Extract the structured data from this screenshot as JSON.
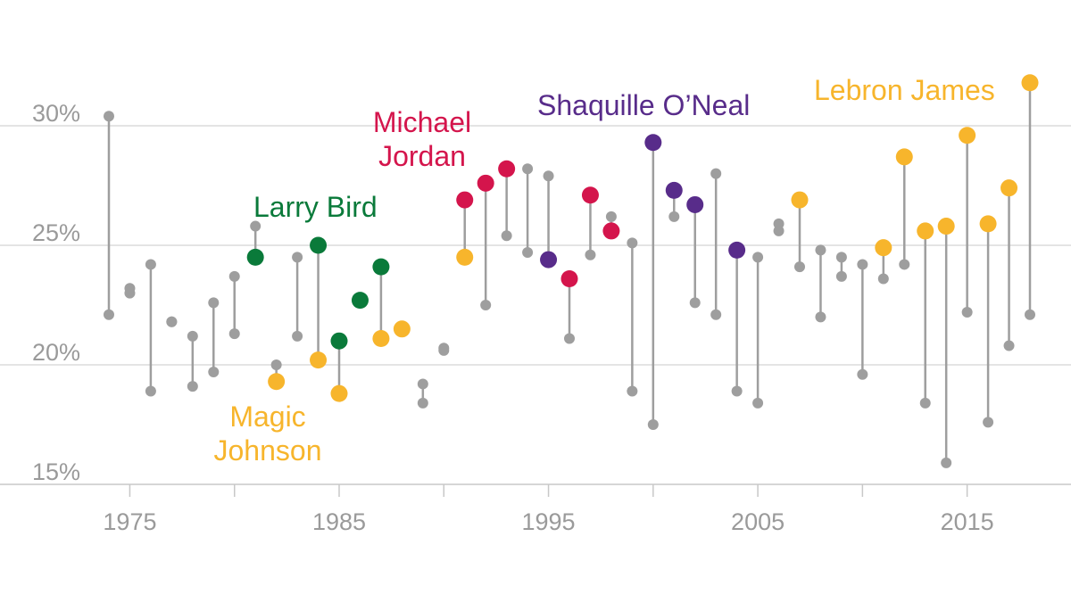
{
  "colors": {
    "neutral": "#9e9e9e",
    "grid": "#dcdcdc",
    "axis": "#c8c8c8",
    "tick_text": "#9a9a9a",
    "bird": "#0a7a3a",
    "magic": "#f7b52c",
    "jordan": "#d4154c",
    "shaq": "#582c8a",
    "lebron": "#f7b52c"
  },
  "chart_data": {
    "type": "dumbbell",
    "title": "",
    "xlabel": "",
    "ylabel": "",
    "xlim": [
      1969.5,
      2020.5
    ],
    "ylim": [
      14.8,
      31.6
    ],
    "yticks": [
      15,
      20,
      25,
      30
    ],
    "ytick_labels": [
      "15%",
      "20%",
      "25%",
      "30%"
    ],
    "xticks": [
      1975,
      1985,
      1995,
      2005,
      2015
    ],
    "xtick_labels": [
      "1975",
      "1985",
      "1995",
      "2005",
      "2015"
    ],
    "minor_xticks": [
      1980,
      1990,
      2000,
      2010
    ],
    "series_labels": [
      {
        "name": "Larry Bird",
        "text": "Larry Bird",
        "colorKey": "bird",
        "anchor": "start",
        "lines": [
          "Larry Bird"
        ]
      },
      {
        "name": "Magic Johnson",
        "text": "Magic Johnson",
        "colorKey": "magic",
        "anchor": "middle",
        "lines": [
          "Magic",
          "Johnson"
        ]
      },
      {
        "name": "Michael Jordan",
        "text": "Michael Jordan",
        "colorKey": "jordan",
        "anchor": "middle",
        "lines": [
          "Michael",
          "Jordan"
        ]
      },
      {
        "name": "Shaquille O’Neal",
        "text": "Shaquille O’Neal",
        "colorKey": "shaq",
        "anchor": "start",
        "lines": [
          "Shaquille O’Neal"
        ]
      },
      {
        "name": "Lebron James",
        "text": "Lebron James",
        "colorKey": "lebron",
        "anchor": "start",
        "lines": [
          "Lebron James"
        ]
      }
    ],
    "seasons": [
      {
        "year": 1974,
        "low": 22.1,
        "high": 30.4,
        "star": null,
        "star_value": null
      },
      {
        "year": 1975,
        "low": 23.0,
        "high": 23.2,
        "star": null,
        "star_value": null
      },
      {
        "year": 1976,
        "low": 18.9,
        "high": 24.2,
        "star": null,
        "star_value": null
      },
      {
        "year": 1977,
        "low": 21.8,
        "high": 21.8,
        "star": null,
        "star_value": null
      },
      {
        "year": 1978,
        "low": 19.1,
        "high": 21.2,
        "star": null,
        "star_value": null
      },
      {
        "year": 1979,
        "low": 19.7,
        "high": 22.6,
        "star": null,
        "star_value": null
      },
      {
        "year": 1980,
        "low": 21.3,
        "high": 23.7,
        "star": null,
        "star_value": null
      },
      {
        "year": 1981,
        "low": 24.5,
        "high": 25.8,
        "star": "bird",
        "star_value": 24.5
      },
      {
        "year": 1982,
        "low": 19.3,
        "high": 20.0,
        "star": "magic",
        "star_value": 19.3
      },
      {
        "year": 1983,
        "low": 21.2,
        "high": 24.5,
        "star": null,
        "star_value": null
      },
      {
        "year": 1984,
        "low": 20.2,
        "high": 25.0,
        "star": "bird",
        "star_value": 25.0,
        "star2": "magic",
        "star2_value": 20.2
      },
      {
        "year": 1985,
        "low": 18.8,
        "high": 21.0,
        "star": "bird",
        "star_value": 21.0,
        "star2": "magic",
        "star2_value": 18.8
      },
      {
        "year": 1986,
        "low": 22.7,
        "high": 22.7,
        "star": "bird",
        "star_value": 22.7
      },
      {
        "year": 1987,
        "low": 21.1,
        "high": 24.1,
        "star": "bird",
        "star_value": 24.1,
        "star2": "magic",
        "star2_value": 21.1
      },
      {
        "year": 1988,
        "low": 21.5,
        "high": 21.6,
        "star": "magic",
        "star_value": 21.5
      },
      {
        "year": 1989,
        "low": 18.4,
        "high": 19.2,
        "star": null,
        "star_value": null
      },
      {
        "year": 1990,
        "low": 20.6,
        "high": 20.7,
        "star": null,
        "star_value": null
      },
      {
        "year": 1991,
        "low": 24.5,
        "high": 26.9,
        "star": "jordan",
        "star_value": 26.9,
        "star2": "magic",
        "star2_value": 24.5
      },
      {
        "year": 1992,
        "low": 22.5,
        "high": 27.6,
        "star": "jordan",
        "star_value": 27.6
      },
      {
        "year": 1993,
        "low": 25.4,
        "high": 28.2,
        "star": "jordan",
        "star_value": 28.2
      },
      {
        "year": 1994,
        "low": 24.7,
        "high": 28.2,
        "star": null,
        "star_value": null
      },
      {
        "year": 1995,
        "low": 24.4,
        "high": 27.9,
        "star": "shaq",
        "star_value": 24.4
      },
      {
        "year": 1996,
        "low": 21.1,
        "high": 23.6,
        "star": "jordan",
        "star_value": 23.6
      },
      {
        "year": 1997,
        "low": 24.6,
        "high": 27.1,
        "star": "jordan",
        "star_value": 27.1
      },
      {
        "year": 1998,
        "low": 25.6,
        "high": 26.2,
        "star": "jordan",
        "star_value": 25.6
      },
      {
        "year": 1999,
        "low": 18.9,
        "high": 25.1,
        "star": null,
        "star_value": null
      },
      {
        "year": 2000,
        "low": 17.5,
        "high": 29.3,
        "star": "shaq",
        "star_value": 29.3
      },
      {
        "year": 2001,
        "low": 26.2,
        "high": 27.3,
        "star": "shaq",
        "star_value": 27.3
      },
      {
        "year": 2002,
        "low": 22.6,
        "high": 26.7,
        "star": "shaq",
        "star_value": 26.7
      },
      {
        "year": 2003,
        "low": 22.1,
        "high": 28.0,
        "star": null,
        "star_value": null
      },
      {
        "year": 2004,
        "low": 18.9,
        "high": 24.8,
        "star": "shaq",
        "star_value": 24.8
      },
      {
        "year": 2005,
        "low": 18.4,
        "high": 24.5,
        "star": null,
        "star_value": null
      },
      {
        "year": 2006,
        "low": 25.6,
        "high": 25.9,
        "star": null,
        "star_value": null
      },
      {
        "year": 2007,
        "low": 24.1,
        "high": 26.9,
        "star": "lebron",
        "star_value": 26.9
      },
      {
        "year": 2008,
        "low": 22.0,
        "high": 24.8,
        "star": null,
        "star_value": null
      },
      {
        "year": 2009,
        "low": 23.7,
        "high": 24.5,
        "star": null,
        "star_value": null
      },
      {
        "year": 2010,
        "low": 19.6,
        "high": 24.2,
        "star": null,
        "star_value": null
      },
      {
        "year": 2011,
        "low": 23.6,
        "high": 24.9,
        "star": "lebron",
        "star_value": 24.9
      },
      {
        "year": 2012,
        "low": 24.2,
        "high": 28.7,
        "star": "lebron",
        "star_value": 28.7
      },
      {
        "year": 2013,
        "low": 18.4,
        "high": 25.6,
        "star": "lebron",
        "star_value": 25.6
      },
      {
        "year": 2014,
        "low": 15.9,
        "high": 25.8,
        "star": "lebron",
        "star_value": 25.8
      },
      {
        "year": 2015,
        "low": 22.2,
        "high": 29.6,
        "star": "lebron",
        "star_value": 29.6
      },
      {
        "year": 2016,
        "low": 17.6,
        "high": 25.9,
        "star": "lebron",
        "star_value": 25.9
      },
      {
        "year": 2017,
        "low": 20.8,
        "high": 27.4,
        "star": "lebron",
        "star_value": 27.4
      },
      {
        "year": 2018,
        "low": 22.1,
        "high": 31.8,
        "star": "lebron",
        "star_value": 31.8
      }
    ]
  }
}
